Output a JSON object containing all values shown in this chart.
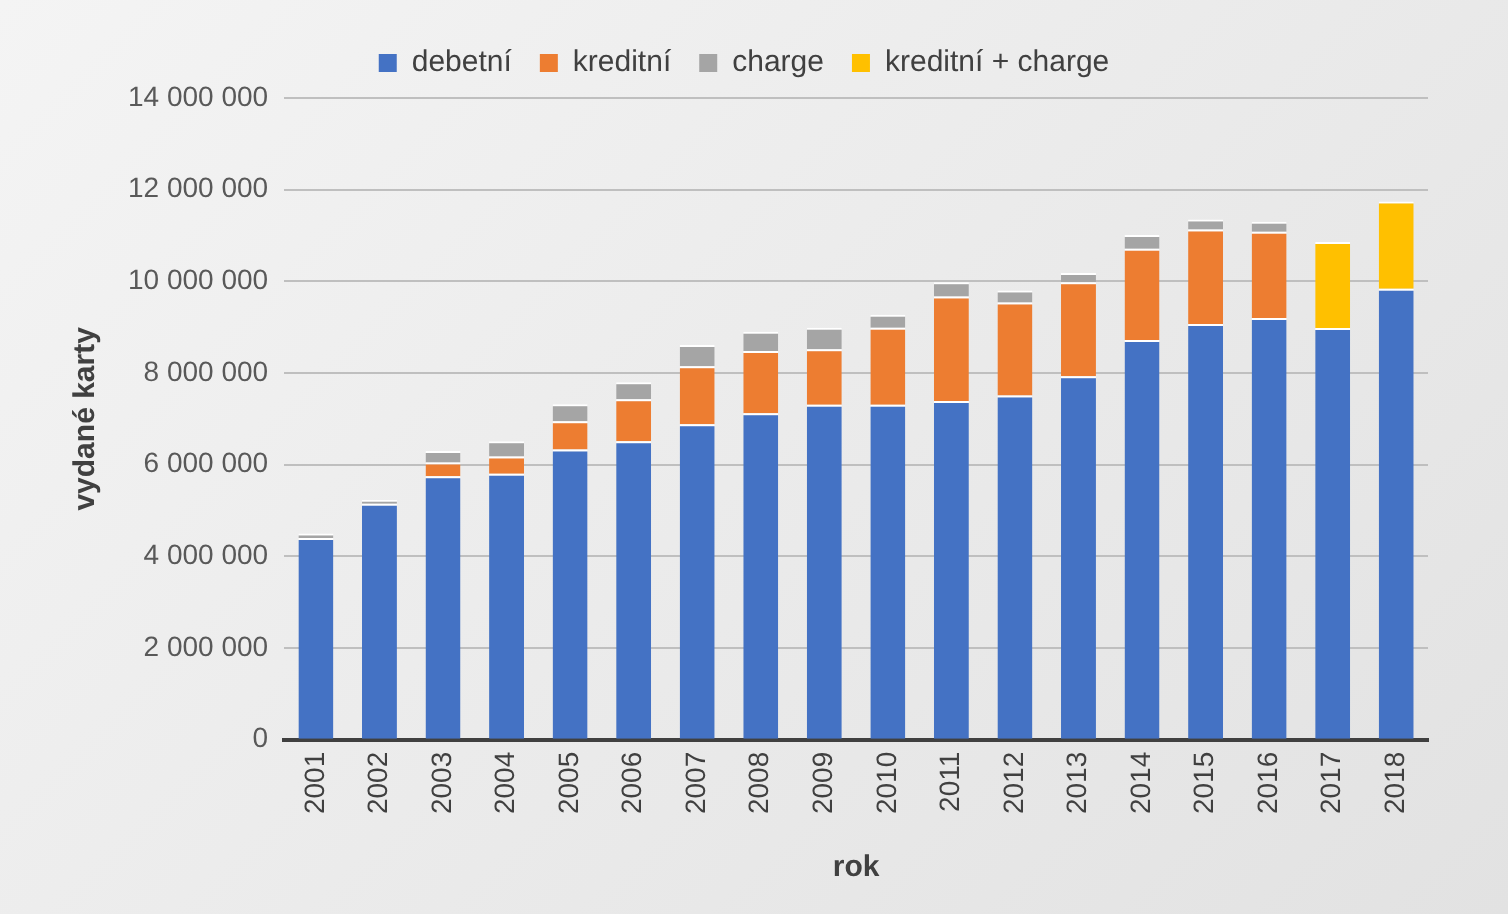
{
  "chart_data": {
    "type": "bar",
    "stacked": true,
    "xlabel": "rok",
    "ylabel": "vydané karty",
    "categories": [
      "2001",
      "2002",
      "2003",
      "2004",
      "2005",
      "2006",
      "2007",
      "2008",
      "2009",
      "2010",
      "2011",
      "2012",
      "2013",
      "2014",
      "2015",
      "2016",
      "2017",
      "2018"
    ],
    "series": [
      {
        "name": "debetní",
        "color": "#4472c4",
        "values": [
          4400000,
          5150000,
          5750000,
          5800000,
          6330000,
          6510000,
          6880000,
          7120000,
          7310000,
          7310000,
          7390000,
          7510000,
          7930000,
          8720000,
          9070000,
          9200000,
          8980000,
          9840000
        ]
      },
      {
        "name": "kreditní",
        "color": "#ed7d31",
        "values": [
          null,
          null,
          300000,
          380000,
          620000,
          920000,
          1270000,
          1360000,
          1210000,
          1680000,
          2280000,
          2030000,
          2050000,
          1990000,
          2060000,
          1880000,
          null,
          null
        ]
      },
      {
        "name": "charge",
        "color": "#a5a5a5",
        "values": [
          100000,
          80000,
          250000,
          330000,
          370000,
          370000,
          460000,
          420000,
          470000,
          280000,
          310000,
          260000,
          200000,
          300000,
          220000,
          220000,
          null,
          null
        ]
      },
      {
        "name": "kreditní + charge",
        "color": "#ffc000",
        "values": [
          null,
          null,
          null,
          null,
          null,
          null,
          null,
          null,
          null,
          null,
          null,
          null,
          null,
          null,
          null,
          null,
          1880000,
          1900000
        ]
      }
    ],
    "ylim": [
      0,
      14000000
    ],
    "yticks": [
      {
        "value": 0,
        "label": "0"
      },
      {
        "value": 2000000,
        "label": "2 000 000"
      },
      {
        "value": 4000000,
        "label": "4 000 000"
      },
      {
        "value": 6000000,
        "label": "6 000 000"
      },
      {
        "value": 8000000,
        "label": "8 000 000"
      },
      {
        "value": 10000000,
        "label": "10 000 000"
      },
      {
        "value": 12000000,
        "label": "12 000 000"
      },
      {
        "value": 14000000,
        "label": "14 000 000"
      }
    ],
    "grid": "y",
    "legend": "top"
  }
}
